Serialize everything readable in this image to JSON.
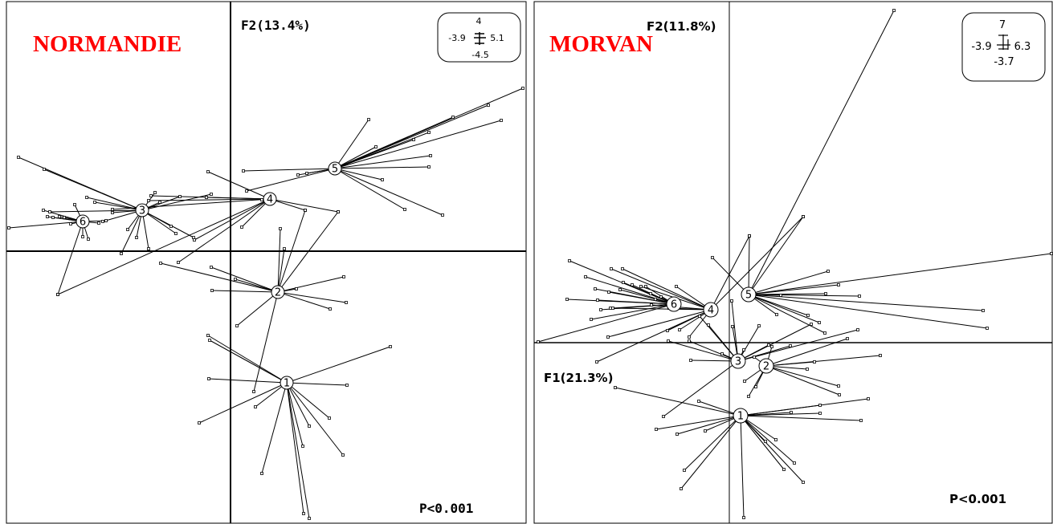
{
  "chart_data": [
    {
      "type": "scatter",
      "region": "NORMANDIE",
      "xlabel": "",
      "ylabel": "F2(13.4%)",
      "p_value": "P<0.001",
      "scale_box": {
        "top": "4",
        "left": "-3.9",
        "right": "5.1",
        "bottom": "-4.5"
      },
      "region_color": "#ff0000",
      "groups": [
        {
          "label": "1",
          "points": [
            [
              259,
              418
            ],
            [
              261,
              424
            ],
            [
              260,
              472
            ],
            [
              248,
              527
            ],
            [
              318,
              507
            ],
            [
              326,
              590
            ],
            [
              378,
              640
            ],
            [
              385,
              646
            ],
            [
              385,
              531
            ],
            [
              410,
              521
            ],
            [
              427,
              567
            ],
            [
              432,
              480
            ],
            [
              486,
              432
            ],
            [
              377,
              556
            ]
          ]
        },
        {
          "label": "2",
          "points": [
            [
              200,
              328
            ],
            [
              263,
              333
            ],
            [
              264,
              362
            ],
            [
              293,
              348
            ],
            [
              295,
              406
            ],
            [
              316,
              488
            ],
            [
              349,
              285
            ],
            [
              354,
              310
            ],
            [
              380,
              262
            ],
            [
              421,
              264
            ],
            [
              428,
              345
            ],
            [
              431,
              377
            ],
            [
              411,
              385
            ],
            [
              369,
              360
            ]
          ]
        },
        {
          "label": "3",
          "points": [
            [
              23,
              196
            ],
            [
              55,
              211
            ],
            [
              62,
              264
            ],
            [
              108,
              246
            ],
            [
              118,
              252
            ],
            [
              128,
              276
            ],
            [
              151,
              316
            ],
            [
              170,
              296
            ],
            [
              185,
              310
            ],
            [
              193,
              240
            ],
            [
              199,
              252
            ],
            [
              213,
              282
            ],
            [
              219,
              291
            ],
            [
              224,
              245
            ],
            [
              241,
              296
            ],
            [
              263,
              242
            ],
            [
              159,
              286
            ],
            [
              140,
              265
            ]
          ]
        },
        {
          "label": "4",
          "points": [
            [
              72,
              367
            ],
            [
              140,
              261
            ],
            [
              185,
              250
            ],
            [
              222,
              327
            ],
            [
              242,
              299
            ],
            [
              257,
              246
            ],
            [
              259,
              214
            ],
            [
              326,
              249
            ],
            [
              380,
              262
            ],
            [
              421,
              264
            ],
            [
              301,
              283
            ],
            [
              188,
              244
            ]
          ]
        },
        {
          "label": "5",
          "points": [
            [
              303,
              213
            ],
            [
              371,
              218
            ],
            [
              382,
              216
            ],
            [
              459,
              149
            ],
            [
              468,
              183
            ],
            [
              515,
              174
            ],
            [
              534,
              165
            ],
            [
              564,
              146
            ],
            [
              608,
              131
            ],
            [
              624,
              150
            ],
            [
              651,
              110
            ],
            [
              536,
              194
            ],
            [
              534,
              208
            ],
            [
              476,
              224
            ],
            [
              504,
              261
            ],
            [
              551,
              268
            ],
            [
              307,
              238
            ]
          ]
        },
        {
          "label": "6",
          "points": [
            [
              11,
              284
            ],
            [
              54,
              262
            ],
            [
              59,
              270
            ],
            [
              66,
              271
            ],
            [
              74,
              270
            ],
            [
              80,
              271
            ],
            [
              88,
              279
            ],
            [
              93,
              255
            ],
            [
              103,
              295
            ],
            [
              110,
              298
            ],
            [
              123,
              278
            ],
            [
              132,
              275
            ],
            [
              72,
              367
            ]
          ]
        }
      ],
      "centroids": {
        "1": [
          357,
          477
        ],
        "2": [
          346,
          364
        ],
        "3": [
          177,
          262
        ],
        "4": [
          336,
          248
        ],
        "5": [
          417,
          210
        ],
        "6": [
          103,
          276
        ]
      }
    },
    {
      "type": "scatter",
      "region": "MORVAN",
      "xlabel": "F1(21.3%)",
      "ylabel": "F2(11.8%)",
      "p_value": "P<0.001",
      "scale_box": {
        "top": "7",
        "left": "-3.9",
        "right": "6.3",
        "bottom": "-3.7"
      },
      "region_color": "#ff0000",
      "groups": [
        {
          "label": "1",
          "points": [
            [
              766,
              483
            ],
            [
              817,
              535
            ],
            [
              843,
              541
            ],
            [
              852,
              586
            ],
            [
              848,
              609
            ],
            [
              870,
              500
            ],
            [
              878,
              537
            ],
            [
              926,
              645
            ],
            [
              966,
              548
            ],
            [
              985,
              514
            ],
            [
              989,
              577
            ],
            [
              1000,
              601
            ],
            [
              1021,
              505
            ],
            [
              1072,
              524
            ],
            [
              1081,
              497
            ],
            [
              1021,
              515
            ],
            [
              976,
              585
            ],
            [
              953,
              550
            ]
          ]
        },
        {
          "label": "2",
          "points": [
            [
              932,
              494
            ],
            [
              941,
              482
            ],
            [
              1005,
              460
            ],
            [
              1014,
              451
            ],
            [
              1096,
              443
            ],
            [
              1044,
              481
            ],
            [
              1045,
              492
            ],
            [
              939,
              445
            ],
            [
              927,
              475
            ],
            [
              961,
              432
            ],
            [
              1055,
              422
            ]
          ]
        },
        {
          "label": "3",
          "points": [
            [
              826,
              519
            ],
            [
              832,
              425
            ],
            [
              858,
              425
            ],
            [
              871,
              394
            ],
            [
              882,
              405
            ],
            [
              860,
              449
            ],
            [
              899,
              441
            ],
            [
              911,
              375
            ],
            [
              912,
              407
            ],
            [
              926,
              436
            ],
            [
              945,
              406
            ],
            [
              957,
              430
            ],
            [
              984,
              431
            ],
            [
              1010,
              404
            ],
            [
              1068,
              411
            ]
          ]
        },
        {
          "label": "4",
          "points": [
            [
              743,
              451
            ],
            [
              757,
              420
            ],
            [
              760,
              384
            ],
            [
              761,
              335
            ],
            [
              775,
              335
            ],
            [
              798,
              357
            ],
            [
              811,
              380
            ],
            [
              831,
              412
            ],
            [
              842,
              357
            ],
            [
              858,
              420
            ],
            [
              846,
              411
            ],
            [
              833,
              384
            ],
            [
              1000,
              270
            ],
            [
              933,
              294
            ]
          ]
        },
        {
          "label": "5",
          "points": [
            [
              887,
              321
            ],
            [
              933,
              294
            ],
            [
              1000,
              270
            ],
            [
              1113,
              13
            ],
            [
              1031,
              338
            ],
            [
              1044,
              355
            ],
            [
              1070,
              369
            ],
            [
              1224,
              387
            ],
            [
              1229,
              409
            ],
            [
              1028,
              366
            ],
            [
              972,
              368
            ],
            [
              967,
              392
            ],
            [
              1006,
              393
            ],
            [
              1020,
              402
            ],
            [
              1027,
              415
            ],
            [
              1309,
              316
            ]
          ]
        },
        {
          "label": "6",
          "points": [
            [
              670,
              426
            ],
            [
              706,
              373
            ],
            [
              709,
              325
            ],
            [
              729,
              345
            ],
            [
              741,
              360
            ],
            [
              744,
              374
            ],
            [
              748,
              386
            ],
            [
              758,
              364
            ],
            [
              772,
              361
            ],
            [
              776,
              352
            ],
            [
              787,
              355
            ],
            [
              804,
              357
            ],
            [
              810,
              366
            ],
            [
              816,
              373
            ],
            [
              823,
              370
            ],
            [
              763,
              384
            ],
            [
              736,
              398
            ]
          ]
        }
      ],
      "centroids": {
        "1": [
          922,
          518
        ],
        "2": [
          954,
          456
        ],
        "3": [
          919,
          450
        ],
        "4": [
          885,
          386
        ],
        "5": [
          932,
          367
        ],
        "6": [
          839,
          379
        ]
      }
    }
  ]
}
